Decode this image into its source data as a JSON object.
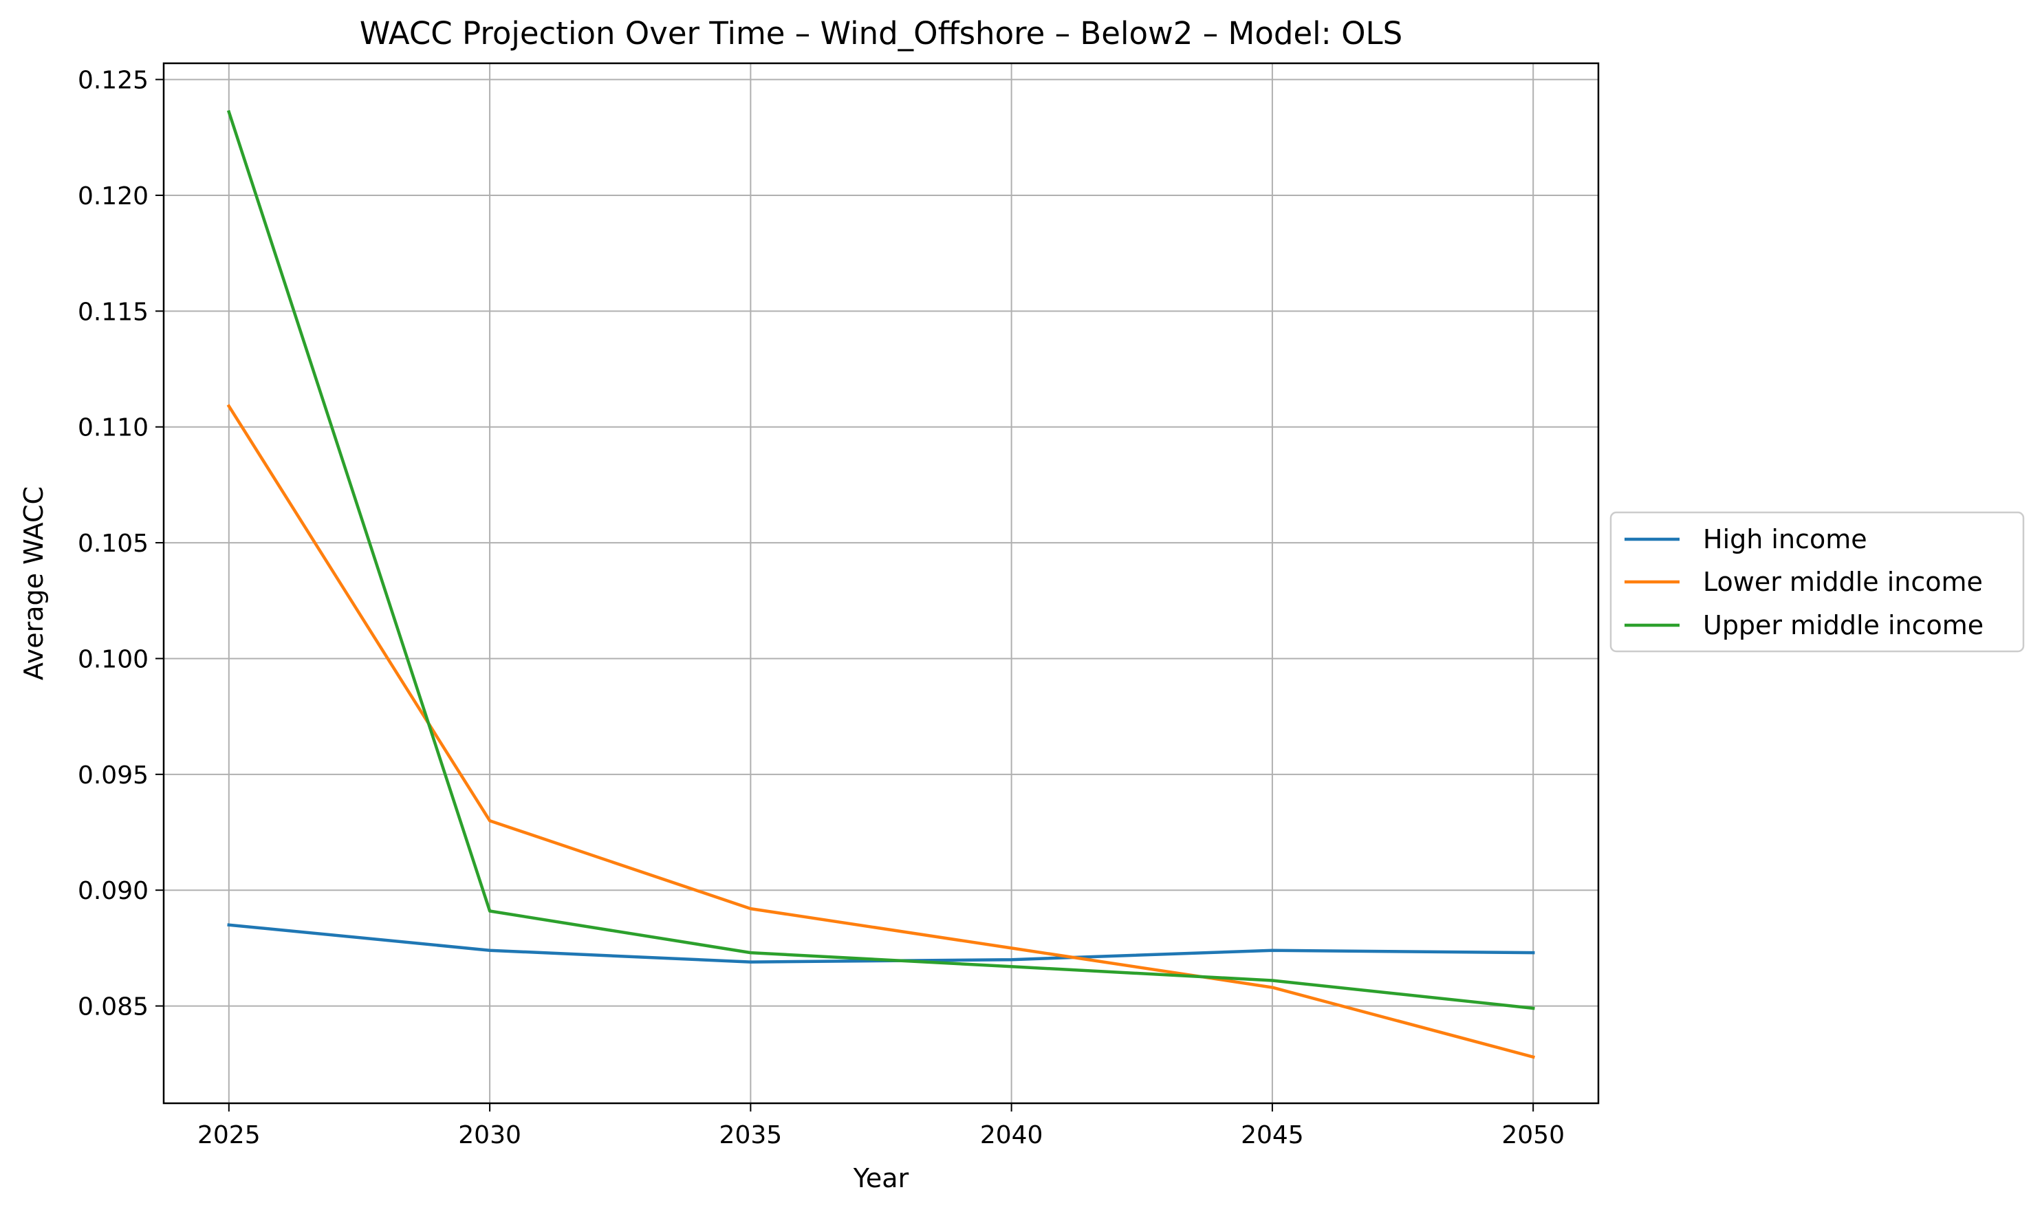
{
  "chart_data": {
    "type": "line",
    "title": "WACC Projection Over Time – Wind_Offshore – Below2 – Model: OLS",
    "xlabel": "Year",
    "ylabel": "Average WACC",
    "x": [
      2025,
      2030,
      2035,
      2040,
      2045,
      2050
    ],
    "xlim": [
      2023.75,
      2051.25
    ],
    "ylim": [
      0.0808,
      0.1257
    ],
    "xticks": [
      2025,
      2030,
      2035,
      2040,
      2045,
      2050
    ],
    "yticks": [
      0.085,
      0.09,
      0.095,
      0.1,
      0.105,
      0.11,
      0.115,
      0.12,
      0.125
    ],
    "ytick_labels": [
      "0.085",
      "0.090",
      "0.095",
      "0.100",
      "0.105",
      "0.110",
      "0.115",
      "0.120",
      "0.125"
    ],
    "grid": true,
    "legend_position": "center-right outside",
    "series": [
      {
        "name": "High income",
        "color": "#1f77b4",
        "values": [
          0.0885,
          0.0874,
          0.0869,
          0.087,
          0.0874,
          0.0873
        ]
      },
      {
        "name": "Lower middle income",
        "color": "#ff7f0e",
        "values": [
          0.1109,
          0.093,
          0.0892,
          0.0875,
          0.0858,
          0.0828
        ]
      },
      {
        "name": "Upper middle income",
        "color": "#2ca02c",
        "values": [
          0.1236,
          0.0891,
          0.0873,
          0.0867,
          0.0861,
          0.0849
        ]
      }
    ]
  }
}
